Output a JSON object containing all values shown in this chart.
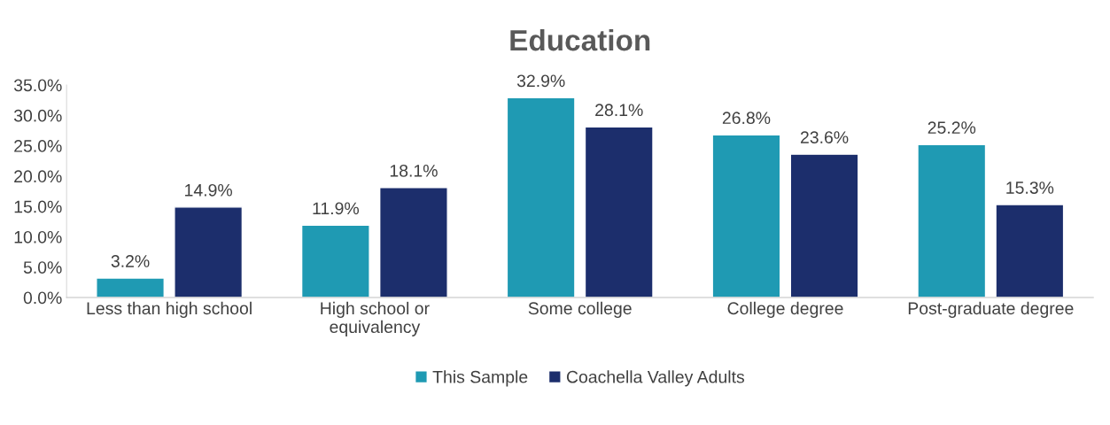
{
  "chart_data": {
    "type": "bar",
    "title": "Education",
    "categories": [
      "Less than high school",
      "High school or\nequivalency",
      "Some college",
      "College degree",
      "Post-graduate degree"
    ],
    "series": [
      {
        "name": "This Sample",
        "color": "#1f9ab3",
        "values": [
          3.2,
          11.9,
          32.9,
          26.8,
          25.2
        ],
        "value_labels": [
          "3.2%",
          "11.9%",
          "32.9%",
          "26.8%",
          "25.2%"
        ]
      },
      {
        "name": "Coachella Valley Adults",
        "color": "#1c2e6c",
        "values": [
          14.9,
          18.1,
          28.1,
          23.6,
          15.3
        ],
        "value_labels": [
          "14.9%",
          "18.1%",
          "28.1%",
          "23.6%",
          "15.3%"
        ]
      }
    ],
    "ylim": [
      0,
      35
    ],
    "yticks": [
      {
        "value": 0,
        "label": "0.0%"
      },
      {
        "value": 5,
        "label": "5.0%"
      },
      {
        "value": 10,
        "label": "10.0%"
      },
      {
        "value": 15,
        "label": "15.0%"
      },
      {
        "value": 20,
        "label": "20.0%"
      },
      {
        "value": 25,
        "label": "25.0%"
      },
      {
        "value": 30,
        "label": "30.0%"
      },
      {
        "value": 35,
        "label": "35.0%"
      }
    ],
    "grid": false,
    "legend": "bottom"
  }
}
